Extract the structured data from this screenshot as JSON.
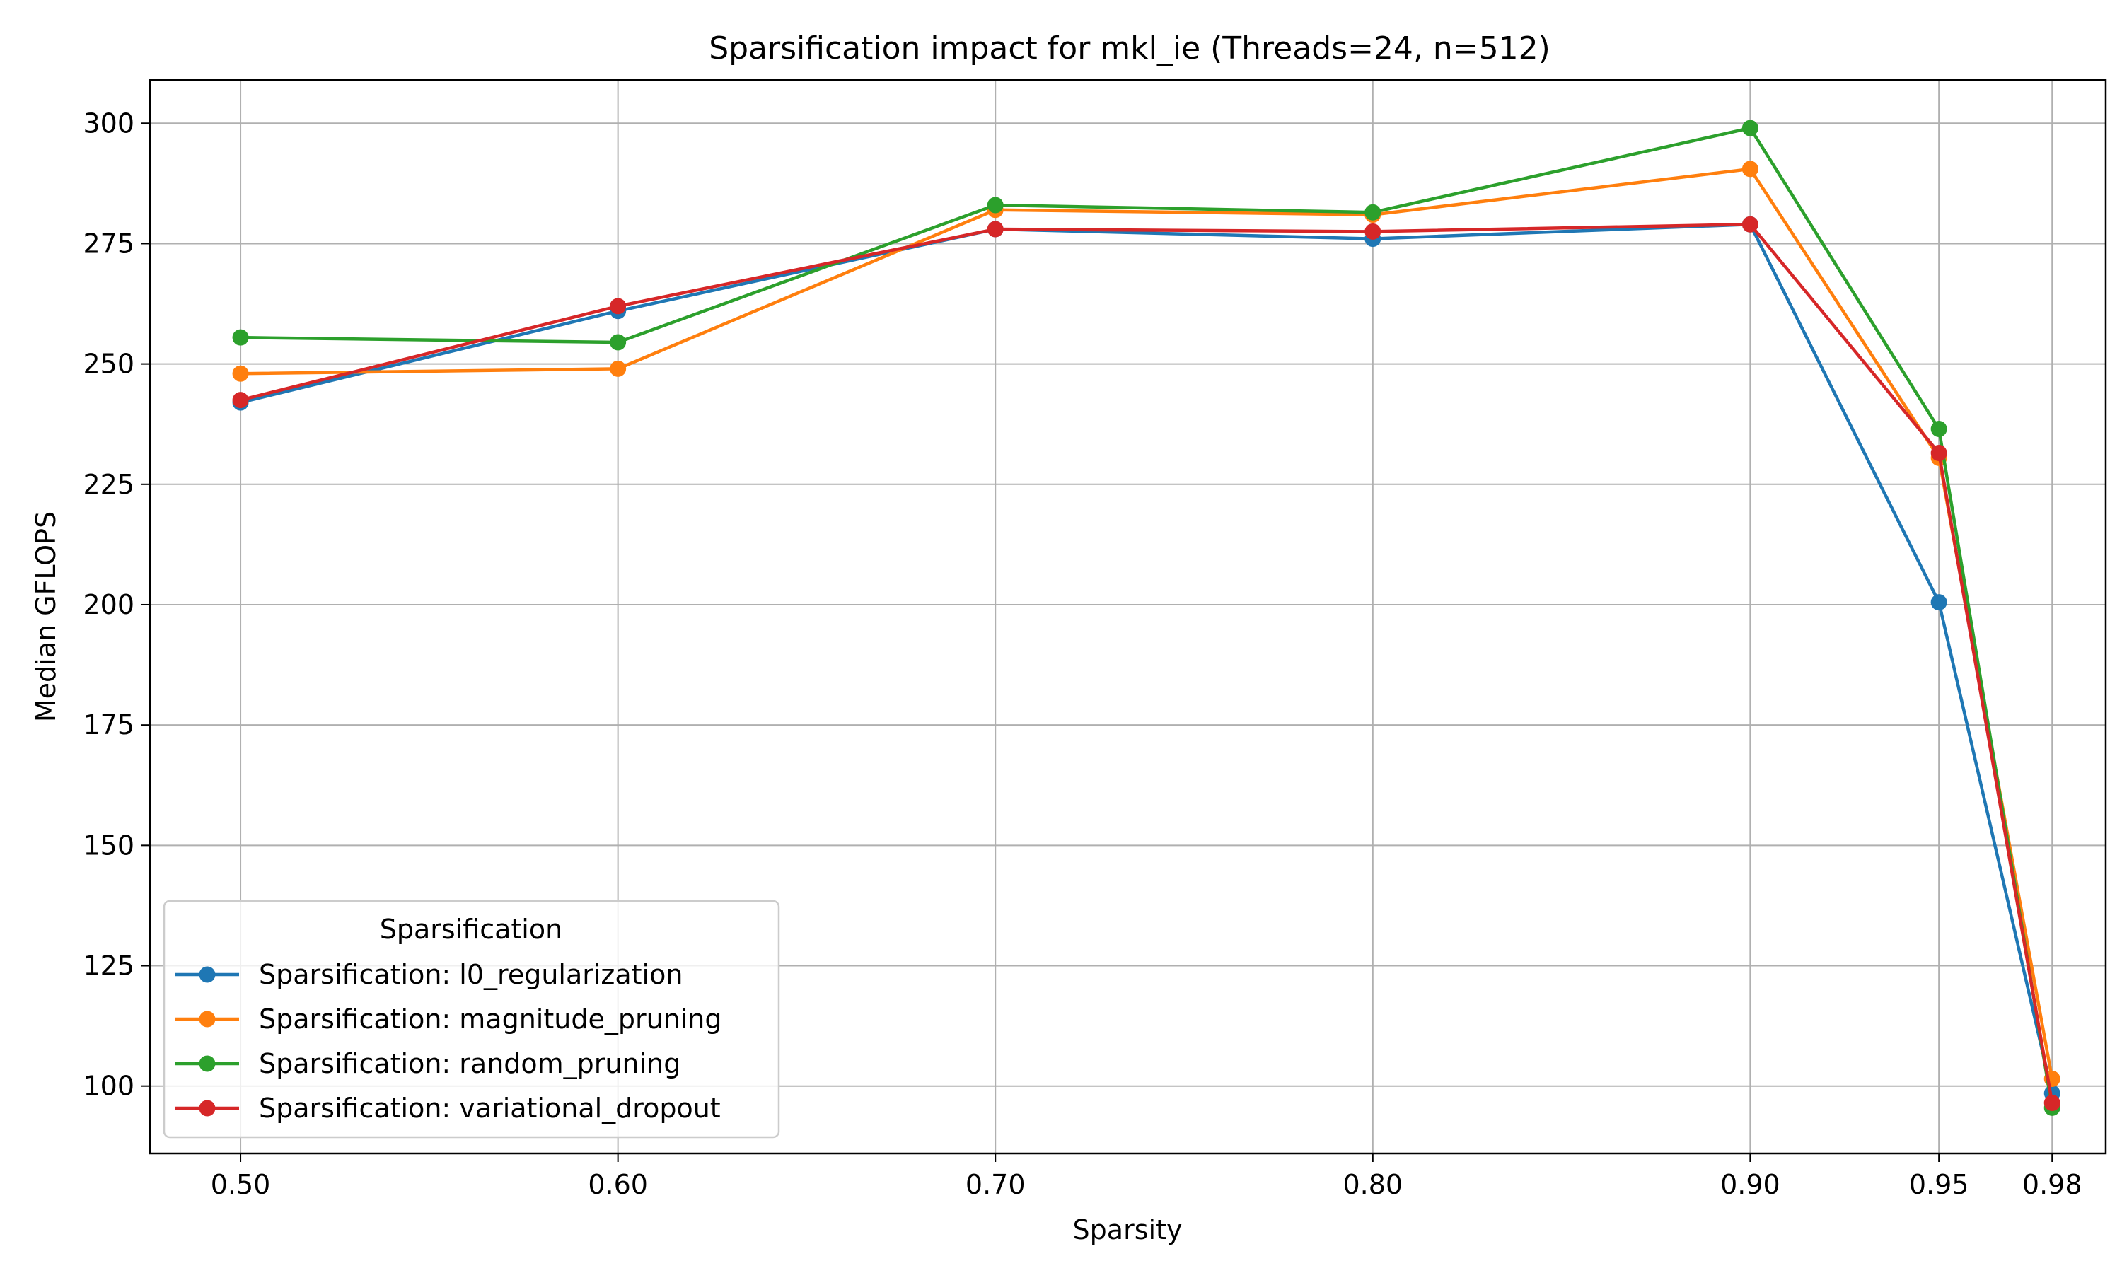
{
  "chart_data": {
    "type": "line",
    "title": "Sparsification impact for mkl_ie (Threads=24, n=512)",
    "xlabel": "Sparsity",
    "ylabel": "Median GFLOPS",
    "x": [
      0.5,
      0.6,
      0.7,
      0.8,
      0.9,
      0.95,
      0.98
    ],
    "x_tick_labels": [
      "0.50",
      "0.60",
      "0.70",
      "0.80",
      "0.90",
      "0.95",
      "0.98"
    ],
    "y_ticks": [
      100,
      125,
      150,
      175,
      200,
      225,
      250,
      275,
      300
    ],
    "xlim": [
      0.476,
      0.9942
    ],
    "ylim": [
      86,
      309
    ],
    "grid": true,
    "legend": {
      "title": "Sparsification",
      "placement": "lower-left"
    },
    "series": [
      {
        "name": "Sparsification: l0_regularization",
        "color": "#1f77b4",
        "values": [
          242,
          261,
          278,
          276,
          279,
          200.5,
          98.5
        ]
      },
      {
        "name": "Sparsification: magnitude_pruning",
        "color": "#ff7f0e",
        "values": [
          248,
          249,
          282,
          281,
          290.5,
          230.5,
          101.5
        ]
      },
      {
        "name": "Sparsification: random_pruning",
        "color": "#2ca02c",
        "values": [
          255.5,
          254.5,
          283,
          281.5,
          299,
          236.5,
          95.5
        ]
      },
      {
        "name": "Sparsification: variational_dropout",
        "color": "#d62728",
        "values": [
          242.5,
          262,
          278,
          277.5,
          279,
          231.5,
          96.5
        ]
      }
    ]
  }
}
